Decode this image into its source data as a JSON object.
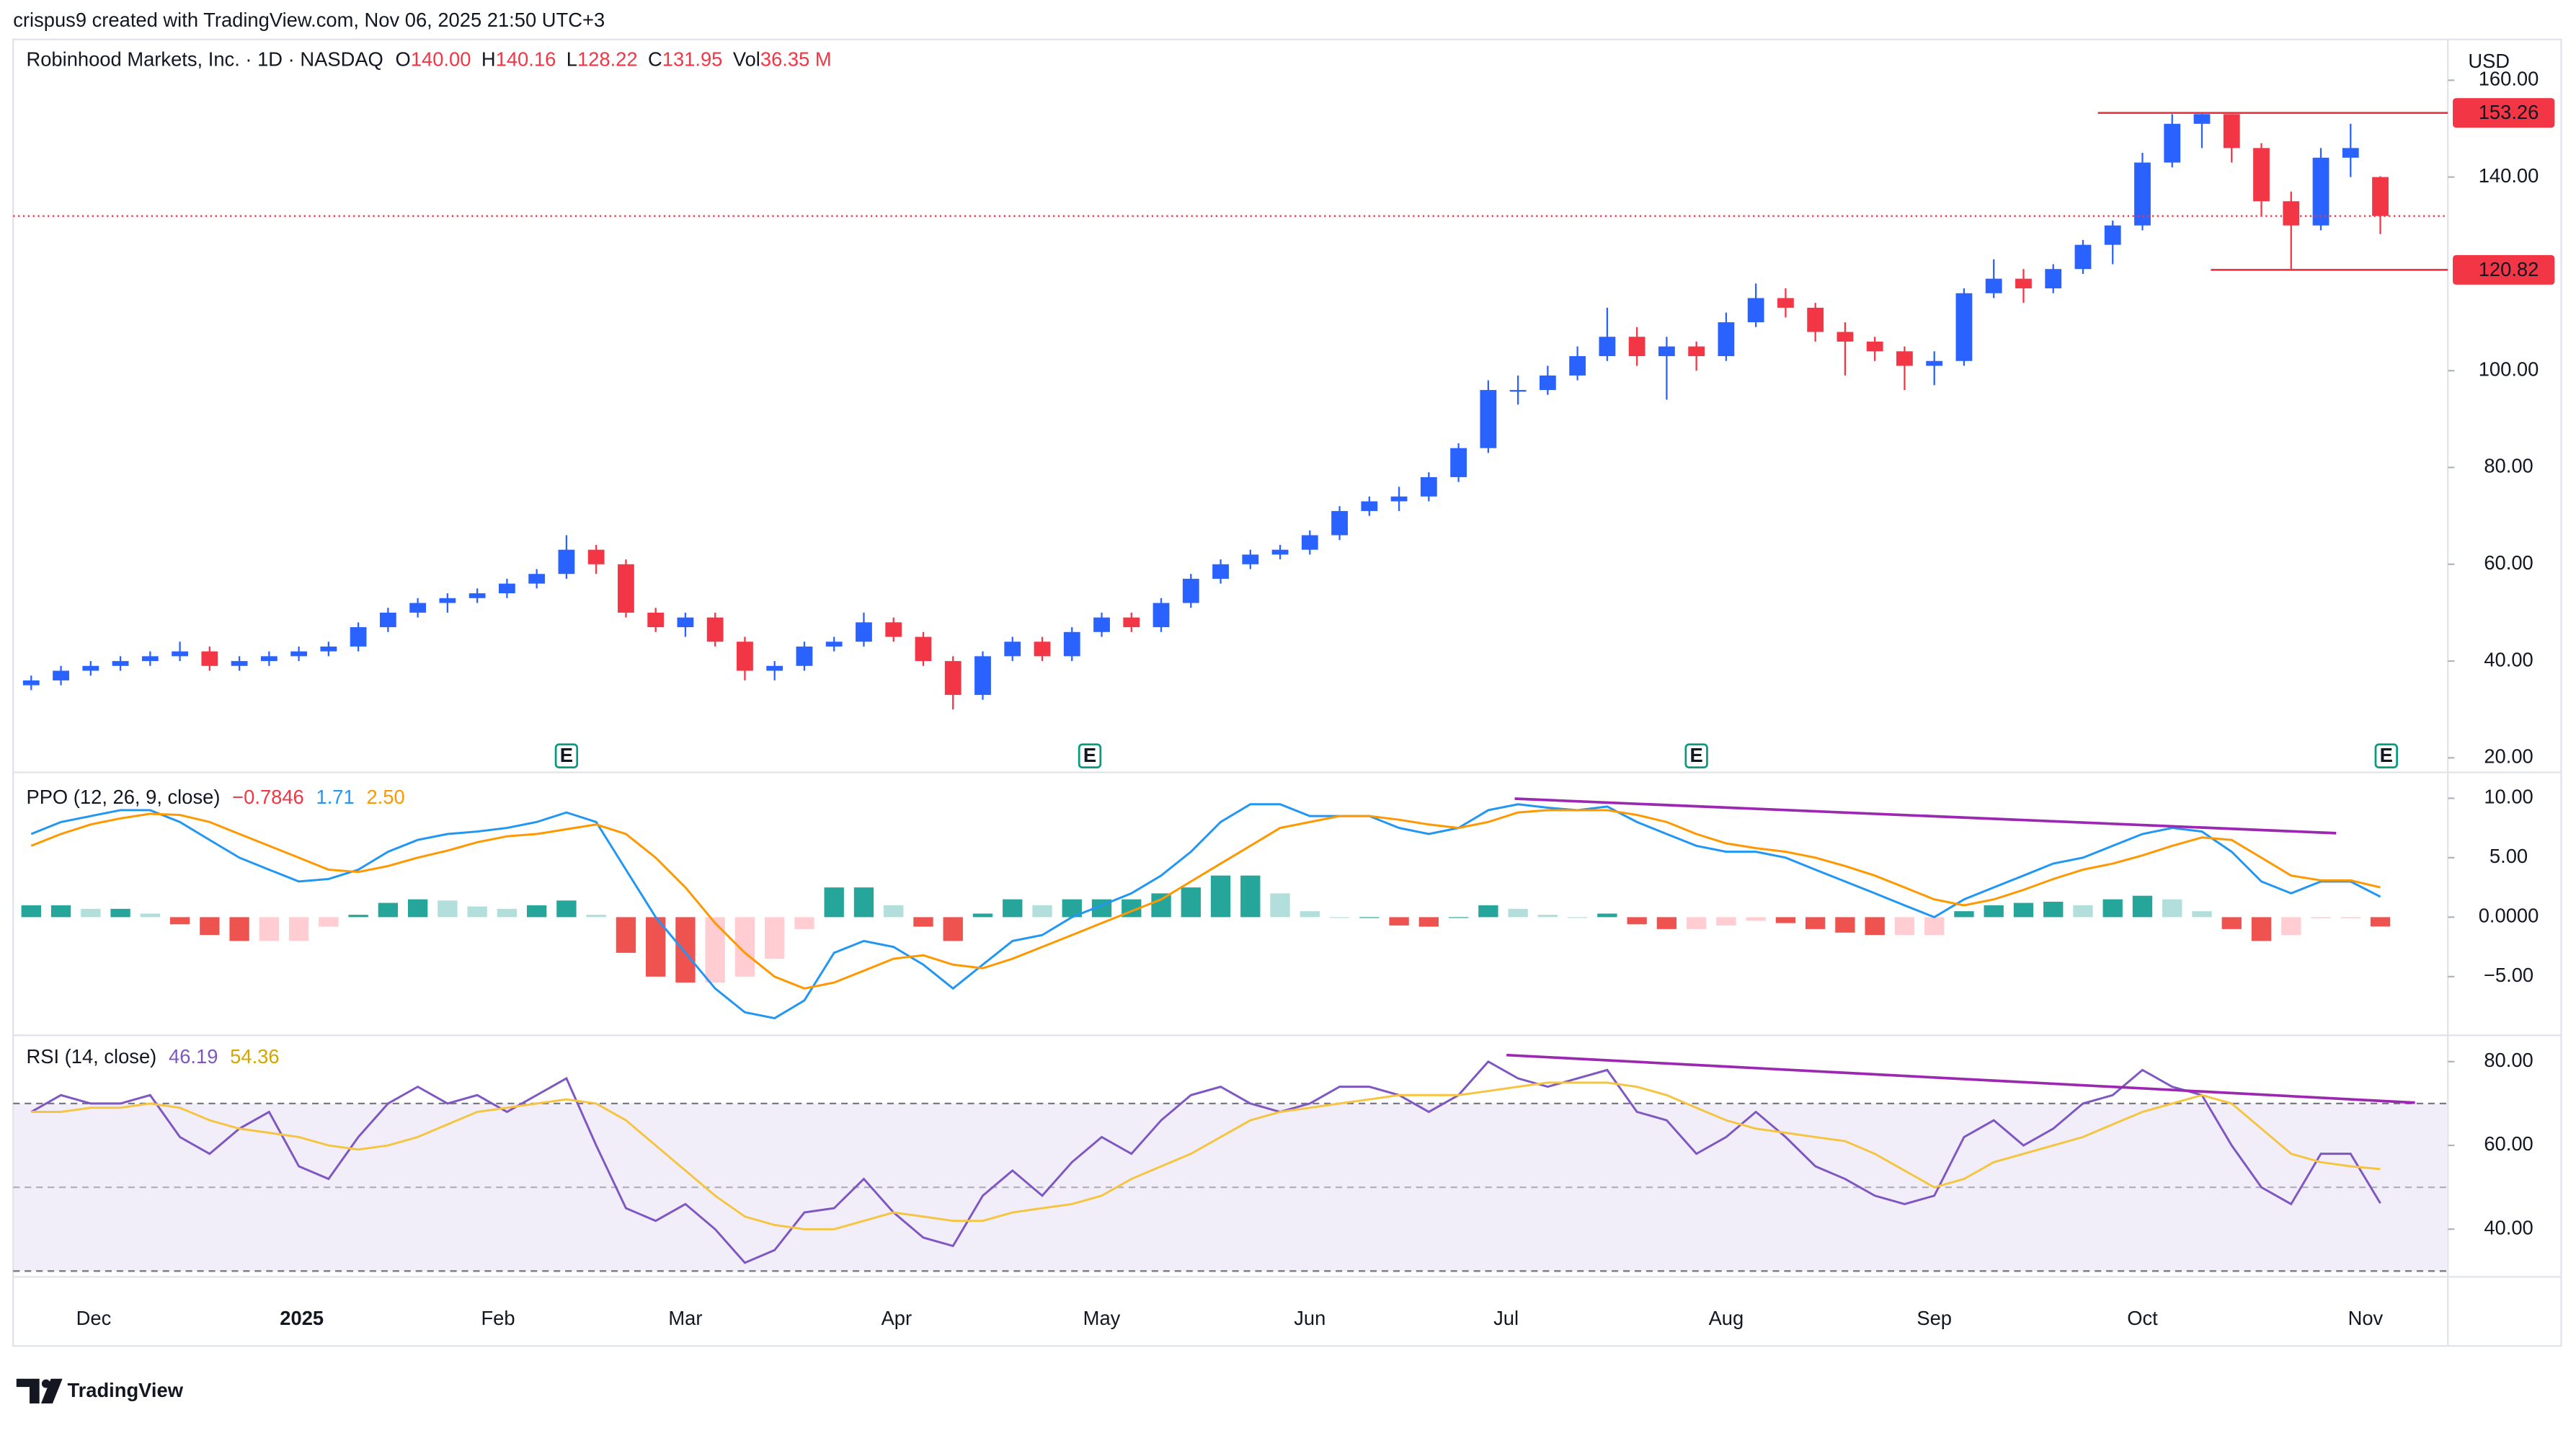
{
  "attribution": "crispus9 created with TradingView.com, Nov 06, 2025 21:50 UTC+3",
  "header": {
    "symbol": "Robinhood Markets, Inc. · 1D · NASDAQ",
    "ohlc": [
      {
        "key": "O",
        "value": "140.00"
      },
      {
        "key": "H",
        "value": "140.16"
      },
      {
        "key": "L",
        "value": "128.22"
      },
      {
        "key": "C",
        "value": "131.95"
      },
      {
        "key": "Vol",
        "value": "36.35 M"
      }
    ]
  },
  "currency": "USD",
  "brand": "TradingView",
  "chart_data": [
    {
      "type": "candlestick",
      "up_color": "#2962ff",
      "down_color": "#f23645",
      "ylim": [
        17,
        163
      ],
      "yticks": [
        {
          "value": 20,
          "label": "20.00"
        },
        {
          "value": 40,
          "label": "40.00"
        },
        {
          "value": 60,
          "label": "60.00"
        },
        {
          "value": 80,
          "label": "80.00"
        },
        {
          "value": 100,
          "label": "100.00"
        },
        {
          "value": 140,
          "label": "140.00"
        },
        {
          "value": 160,
          "label": "160.00"
        }
      ],
      "xlim": [
        -1,
        81
      ],
      "xticks": [
        {
          "value": 2.1,
          "label": "Dec"
        },
        {
          "value": 9.1,
          "label": "2025",
          "bold": true
        },
        {
          "value": 15.7,
          "label": "Feb"
        },
        {
          "value": 22,
          "label": "Mar"
        },
        {
          "value": 29.1,
          "label": "Apr"
        },
        {
          "value": 36,
          "label": "May"
        },
        {
          "value": 43,
          "label": "Jun"
        },
        {
          "value": 49.6,
          "label": "Jul"
        },
        {
          "value": 57,
          "label": "Aug"
        },
        {
          "value": 64,
          "label": "Sep"
        },
        {
          "value": 71,
          "label": "Oct"
        },
        {
          "value": 78.5,
          "label": "Nov"
        }
      ],
      "ohlc": [
        [
          35,
          37,
          34,
          36
        ],
        [
          36,
          39,
          35,
          38
        ],
        [
          38,
          40,
          37,
          39
        ],
        [
          39,
          41,
          38,
          40
        ],
        [
          40,
          42,
          39,
          41
        ],
        [
          41,
          44,
          40,
          42
        ],
        [
          42,
          43,
          38,
          39
        ],
        [
          39,
          41,
          38,
          40
        ],
        [
          40,
          42,
          39,
          41
        ],
        [
          41,
          43,
          40,
          42
        ],
        [
          42,
          44,
          41,
          43
        ],
        [
          43,
          48,
          42,
          47
        ],
        [
          47,
          51,
          46,
          50
        ],
        [
          50,
          53,
          49,
          52
        ],
        [
          52,
          54,
          50,
          53
        ],
        [
          53,
          55,
          52,
          54
        ],
        [
          54,
          57,
          53,
          56
        ],
        [
          56,
          59,
          55,
          58
        ],
        [
          58,
          66,
          57,
          63
        ],
        [
          63,
          64,
          58,
          60
        ],
        [
          60,
          61,
          49,
          50
        ],
        [
          50,
          51,
          46,
          47
        ],
        [
          47,
          50,
          45,
          49
        ],
        [
          49,
          50,
          43,
          44
        ],
        [
          44,
          45,
          36,
          38
        ],
        [
          38,
          40,
          36,
          39
        ],
        [
          39,
          44,
          38,
          43
        ],
        [
          43,
          45,
          42,
          44
        ],
        [
          44,
          50,
          43,
          48
        ],
        [
          48,
          49,
          44,
          45
        ],
        [
          45,
          46,
          39,
          40
        ],
        [
          40,
          41,
          30,
          33
        ],
        [
          33,
          42,
          32,
          41
        ],
        [
          41,
          45,
          40,
          44
        ],
        [
          44,
          45,
          40,
          41
        ],
        [
          41,
          47,
          40,
          46
        ],
        [
          46,
          50,
          45,
          49
        ],
        [
          49,
          50,
          46,
          47
        ],
        [
          47,
          53,
          46,
          52
        ],
        [
          52,
          58,
          51,
          57
        ],
        [
          57,
          61,
          56,
          60
        ],
        [
          60,
          63,
          59,
          62
        ],
        [
          62,
          64,
          61,
          63
        ],
        [
          63,
          67,
          62,
          66
        ],
        [
          66,
          72,
          65,
          71
        ],
        [
          71,
          74,
          70,
          73
        ],
        [
          73,
          76,
          71,
          74
        ],
        [
          74,
          79,
          73,
          78
        ],
        [
          78,
          85,
          77,
          84
        ],
        [
          84,
          98,
          83,
          96
        ],
        [
          96,
          99,
          93,
          96
        ],
        [
          96,
          101,
          95,
          99
        ],
        [
          99,
          105,
          98,
          103
        ],
        [
          103,
          113,
          102,
          107
        ],
        [
          107,
          109,
          101,
          103
        ],
        [
          103,
          107,
          94,
          105
        ],
        [
          105,
          106,
          100,
          103
        ],
        [
          103,
          112,
          102,
          110
        ],
        [
          110,
          118,
          109,
          115
        ],
        [
          115,
          117,
          111,
          113
        ],
        [
          113,
          114,
          106,
          108
        ],
        [
          108,
          110,
          99,
          106
        ],
        [
          106,
          107,
          102,
          104
        ],
        [
          104,
          105,
          96,
          101
        ],
        [
          101,
          104,
          97,
          102
        ],
        [
          102,
          117,
          101,
          116
        ],
        [
          116,
          123,
          115,
          119
        ],
        [
          119,
          121,
          114,
          117
        ],
        [
          117,
          122,
          116,
          121
        ],
        [
          121,
          127,
          120,
          126
        ],
        [
          126,
          131,
          122,
          130
        ],
        [
          130,
          145,
          129,
          143
        ],
        [
          143,
          153,
          142,
          151
        ],
        [
          151,
          153.26,
          146,
          153
        ],
        [
          153,
          153,
          143,
          146
        ],
        [
          146,
          147,
          132,
          135
        ],
        [
          135,
          137,
          120.82,
          130
        ],
        [
          130,
          146,
          129,
          144
        ],
        [
          144,
          151,
          140,
          146
        ],
        [
          140,
          140.16,
          128.22,
          131.95
        ]
      ],
      "levels": [
        {
          "value": 153.26,
          "from": 69.5
        },
        {
          "value": 120.82,
          "from": 73.3
        }
      ],
      "level_color": "#f23645",
      "events": [
        {
          "at": 18,
          "label": "E"
        },
        {
          "at": 35.6,
          "label": "E"
        },
        {
          "at": 56,
          "label": "E"
        },
        {
          "at": 79.2,
          "label": "E"
        }
      ]
    },
    {
      "type": "ppo",
      "title": "PPO (12, 26, 9, close)",
      "ylim": [
        -9.66,
        11.9
      ],
      "yticks": [
        {
          "value": 10,
          "label": "10.00"
        },
        {
          "value": 5,
          "label": "5.00"
        },
        {
          "value": 0,
          "label": "0.0000"
        },
        {
          "value": -5,
          "label": "−5.00"
        }
      ],
      "histogram": {
        "last_label": "−0.7846",
        "colors": [
          "#26a69a",
          "#b2dfdb",
          "#ef5350",
          "#ffcdd2"
        ],
        "values": [
          1,
          1,
          0.7,
          0.7,
          0.3,
          -0.6,
          -1.5,
          -2,
          -2,
          -2,
          -0.8,
          0.2,
          1.2,
          1.5,
          1.4,
          0.9,
          0.7,
          1,
          1.4,
          0.2,
          -3,
          -5,
          -5.5,
          -5.5,
          -5,
          -3.5,
          -1,
          2.5,
          2.5,
          1,
          -0.8,
          -2,
          0.3,
          1.5,
          1,
          1.5,
          1.5,
          1.5,
          2,
          2.5,
          3.5,
          3.5,
          2,
          0.5,
          0,
          0,
          -0.7,
          -0.8,
          0,
          1,
          0.7,
          0.2,
          0,
          0.3,
          -0.6,
          -1,
          -1,
          -0.7,
          -0.3,
          -0.5,
          -1,
          -1.3,
          -1.5,
          -1.5,
          -1.5,
          0.5,
          1,
          1.2,
          1.3,
          1,
          1.5,
          1.8,
          1.5,
          0.5,
          -1,
          -2,
          -1.5,
          -0.1,
          -0.1,
          -0.7846
        ]
      },
      "series": [
        {
          "color": "#2196f3",
          "last_label": "1.71",
          "values": [
            7,
            8,
            8.5,
            9,
            9,
            8,
            6.5,
            5,
            4,
            3,
            3.2,
            4,
            5.5,
            6.5,
            7,
            7.2,
            7.5,
            8,
            8.8,
            8,
            4,
            0,
            -3,
            -6,
            -8,
            -8.5,
            -7,
            -3,
            -2,
            -2.5,
            -4,
            -6,
            -4,
            -2,
            -1.5,
            0,
            1,
            2,
            3.5,
            5.5,
            8,
            9.5,
            9.5,
            8.5,
            8.5,
            8.5,
            7.5,
            7,
            7.5,
            9,
            9.5,
            9.2,
            9,
            9.3,
            8,
            7,
            6,
            5.5,
            5.5,
            5,
            4,
            3,
            2,
            1,
            0,
            1.5,
            2.5,
            3.5,
            4.5,
            5,
            6,
            7,
            7.5,
            7.2,
            5.5,
            3,
            2,
            3,
            3,
            1.71
          ]
        },
        {
          "color": "#ff9800",
          "last_label": "2.50",
          "values": [
            6,
            7,
            7.8,
            8.3,
            8.7,
            8.6,
            8,
            7,
            6,
            5,
            4,
            3.8,
            4.3,
            5,
            5.6,
            6.3,
            6.8,
            7,
            7.4,
            7.8,
            7,
            5,
            2.5,
            -0.5,
            -3,
            -5,
            -6,
            -5.5,
            -4.5,
            -3.5,
            -3.2,
            -4,
            -4.3,
            -3.5,
            -2.5,
            -1.5,
            -0.5,
            0.5,
            1.5,
            3,
            4.5,
            6,
            7.5,
            8,
            8.5,
            8.5,
            8.2,
            7.8,
            7.5,
            8,
            8.8,
            9,
            9,
            9,
            8.6,
            8,
            7,
            6.2,
            5.8,
            5.5,
            5,
            4.3,
            3.5,
            2.5,
            1.5,
            1,
            1.5,
            2.3,
            3.2,
            4,
            4.5,
            5.2,
            6,
            6.7,
            6.5,
            5,
            3.5,
            3.1,
            3.1,
            2.5
          ]
        }
      ]
    },
    {
      "type": "rsi",
      "title": "RSI (14, close)",
      "ylim": [
        29,
        85.5
      ],
      "yticks": [
        {
          "value": 80,
          "label": "80.00"
        },
        {
          "value": 60,
          "label": "60.00"
        },
        {
          "value": 40,
          "label": "40.00"
        }
      ],
      "band": [
        30,
        70
      ],
      "mid": 50,
      "band_color": "#ede7f6",
      "series": [
        {
          "color": "#7e57c2",
          "last_label": "46.19",
          "values": [
            68,
            72,
            70,
            70,
            72,
            62,
            58,
            64,
            68,
            55,
            52,
            62,
            70,
            74,
            70,
            72,
            68,
            72,
            76,
            60,
            45,
            42,
            46,
            40,
            32,
            35,
            44,
            45,
            52,
            44,
            38,
            36,
            48,
            54,
            48,
            56,
            62,
            58,
            66,
            72,
            74,
            70,
            68,
            70,
            74,
            74,
            72,
            68,
            72,
            80,
            76,
            74,
            76,
            78,
            68,
            66,
            58,
            62,
            68,
            62,
            55,
            52,
            48,
            46,
            48,
            62,
            66,
            60,
            64,
            70,
            72,
            78,
            74,
            72,
            60,
            50,
            46,
            58,
            58,
            46.19
          ]
        },
        {
          "color": "#f5c542",
          "last_label": "54.36",
          "values": [
            68,
            68,
            69,
            69,
            70,
            69,
            66,
            64,
            63,
            62,
            60,
            59,
            60,
            62,
            65,
            68,
            69,
            70,
            71,
            70,
            66,
            60,
            54,
            48,
            43,
            41,
            40,
            40,
            42,
            44,
            43,
            42,
            42,
            44,
            45,
            46,
            48,
            52,
            55,
            58,
            62,
            66,
            68,
            69,
            70,
            71,
            72,
            72,
            72,
            73,
            74,
            75,
            75,
            75,
            74,
            72,
            69,
            66,
            64,
            63,
            62,
            61,
            58,
            54,
            50,
            52,
            56,
            58,
            60,
            62,
            65,
            68,
            70,
            72,
            70,
            64,
            58,
            56,
            55,
            54.36
          ]
        }
      ]
    }
  ]
}
